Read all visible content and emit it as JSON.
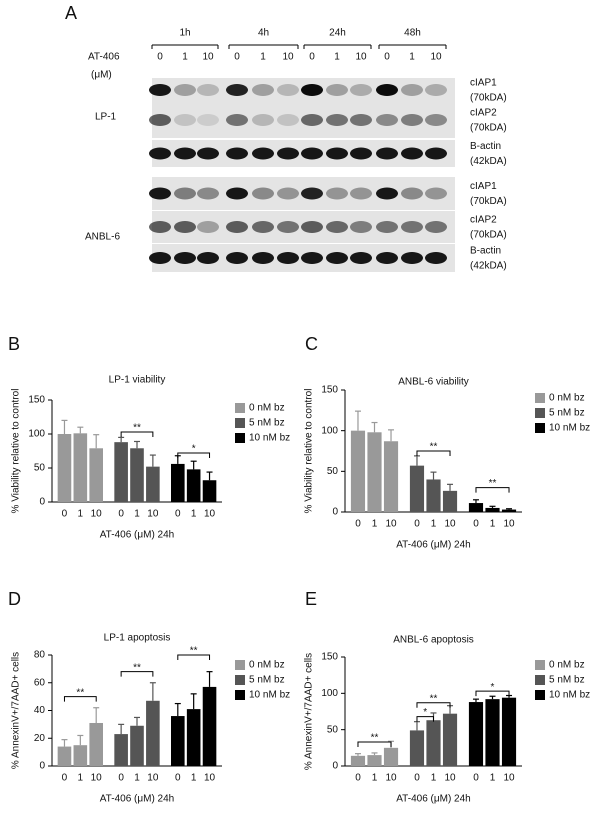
{
  "figure_label": "A",
  "blot": {
    "time_points": [
      "1h",
      "4h",
      "24h",
      "48h"
    ],
    "treatment_label": "AT-406",
    "unit_label": "(μM)",
    "doses": [
      "0",
      "1",
      "10"
    ],
    "cell_lines": [
      {
        "name": "LP-1",
        "proteins": [
          {
            "name": "cIAP1",
            "size": "(70kDA)"
          },
          {
            "name": "cIAP2",
            "size": "(70kDA)"
          },
          {
            "name": "B-actin",
            "size": "(42kDA)"
          }
        ]
      },
      {
        "name": "ANBL-6",
        "proteins": [
          {
            "name": "cIAP1",
            "size": "(70kDA)"
          },
          {
            "name": "cIAP2",
            "size": "(70kDA)"
          },
          {
            "name": "B-actin",
            "size": "(42kDA)"
          }
        ]
      }
    ]
  },
  "panel_labels": [
    "B",
    "C",
    "D",
    "E"
  ],
  "chart_data": [
    {
      "type": "bar",
      "title": "LP-1 viability",
      "xlabel": "AT-406 (μM) 24h",
      "ylabel": "% Viability relative to control",
      "categories": [
        "0",
        "1",
        "10"
      ],
      "ylim": [
        0,
        150
      ],
      "yticks": [
        0,
        50,
        100,
        150
      ],
      "legend": "right",
      "series": [
        {
          "name": "0 nM bz",
          "color": "#999999",
          "values": [
            100,
            101,
            79
          ],
          "errors": [
            20,
            9,
            20
          ],
          "brackets": []
        },
        {
          "name": "5 nM bz",
          "color": "#555555",
          "values": [
            88,
            79,
            52
          ],
          "errors": [
            7,
            10,
            17
          ],
          "brackets": [
            {
              "text": "**",
              "y": 103
            }
          ]
        },
        {
          "name": "10 nM bz",
          "color": "#000000",
          "values": [
            56,
            48,
            32
          ],
          "errors": [
            12,
            12,
            12
          ],
          "brackets": [
            {
              "text": "*",
              "y": 72
            }
          ]
        }
      ]
    },
    {
      "type": "bar",
      "title": "ANBL-6 viability",
      "xlabel": "AT-406 (μM) 24h",
      "ylabel": "% Viability relative to control",
      "categories": [
        "0",
        "1",
        "10"
      ],
      "ylim": [
        0,
        150
      ],
      "yticks": [
        0,
        50,
        100,
        150
      ],
      "legend": "right",
      "series": [
        {
          "name": "0 nM bz",
          "color": "#999999",
          "values": [
            100,
            98,
            87
          ],
          "errors": [
            24,
            12,
            14
          ],
          "brackets": []
        },
        {
          "name": "5 nM bz",
          "color": "#555555",
          "values": [
            57,
            40,
            26
          ],
          "errors": [
            12,
            9,
            8
          ],
          "brackets": [
            {
              "text": "**",
              "y": 75
            }
          ]
        },
        {
          "name": "10 nM bz",
          "color": "#000000",
          "values": [
            11,
            5,
            3
          ],
          "errors": [
            4,
            2,
            1
          ],
          "brackets": [
            {
              "text": "**",
              "y": 30
            }
          ]
        }
      ]
    },
    {
      "type": "bar",
      "title": "LP-1 apoptosis",
      "xlabel": "AT-406 (μM) 24h",
      "ylabel": "% AnnexinV+/7AAD+ cells",
      "categories": [
        "0",
        "1",
        "10"
      ],
      "ylim": [
        0,
        80
      ],
      "yticks": [
        0,
        20,
        40,
        60,
        80
      ],
      "legend": "right",
      "series": [
        {
          "name": "0 nM bz",
          "color": "#999999",
          "values": [
            14,
            15,
            31
          ],
          "errors": [
            5,
            7,
            11
          ],
          "brackets": [
            {
              "text": "**",
              "y": 50
            }
          ]
        },
        {
          "name": "5 nM bz",
          "color": "#555555",
          "values": [
            23,
            29,
            47
          ],
          "errors": [
            7,
            6,
            13
          ],
          "brackets": [
            {
              "text": "**",
              "y": 68
            }
          ]
        },
        {
          "name": "10 nM bz",
          "color": "#000000",
          "values": [
            36,
            41,
            57
          ],
          "errors": [
            9,
            11,
            11
          ],
          "brackets": [
            {
              "text": "**",
              "y": 80
            }
          ]
        }
      ]
    },
    {
      "type": "bar",
      "title": "ANBL-6 apoptosis",
      "xlabel": "AT-406 (μM) 24h",
      "ylabel": "% AnnexinV+/7AAD+ cells",
      "categories": [
        "0",
        "1",
        "10"
      ],
      "ylim": [
        0,
        150
      ],
      "yticks": [
        0,
        50,
        100,
        150
      ],
      "legend": "right",
      "series": [
        {
          "name": "0 nM bz",
          "color": "#999999",
          "values": [
            14,
            15,
            25
          ],
          "errors": [
            3,
            3,
            9
          ],
          "brackets": [
            {
              "text": "**",
              "y": 33
            }
          ]
        },
        {
          "name": "5 nM bz",
          "color": "#555555",
          "values": [
            49,
            63,
            72
          ],
          "errors": [
            12,
            10,
            11
          ],
          "brackets": [
            {
              "text": "**",
              "y": 87
            },
            {
              "text": "*",
              "y": 68,
              "to": 1
            }
          ]
        },
        {
          "name": "10 nM bz",
          "color": "#000000",
          "values": [
            88,
            92,
            94
          ],
          "errors": [
            4,
            4,
            3
          ],
          "brackets": [
            {
              "text": "*",
              "y": 103
            }
          ]
        }
      ]
    }
  ]
}
